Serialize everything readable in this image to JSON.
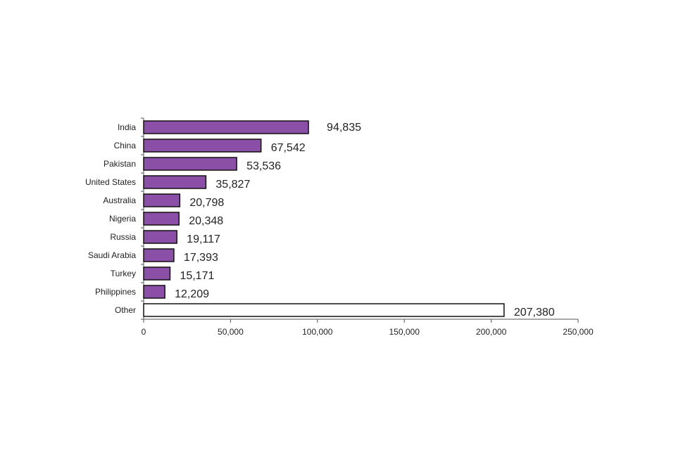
{
  "chart_data": {
    "type": "bar",
    "orientation": "horizontal",
    "categories": [
      "India",
      "China",
      "Pakistan",
      "United States",
      "Australia",
      "Nigeria",
      "Russia",
      "Saudi Arabia",
      "Turkey",
      "Philippines",
      "Other"
    ],
    "values": [
      94835,
      67542,
      53536,
      35827,
      20798,
      20348,
      19117,
      17393,
      15171,
      12209,
      207380
    ],
    "value_labels": [
      "94,835",
      "67,542",
      "53,536",
      "35,827",
      "20,798",
      "20,348",
      "19,117",
      "17,393",
      "15,171",
      "12,209",
      "207,380"
    ],
    "xlim": [
      0,
      250000
    ],
    "xticks": [
      0,
      50000,
      100000,
      150000,
      200000,
      250000
    ],
    "xtick_labels": [
      "0",
      "50,000",
      "100,000",
      "150,000",
      "200,000",
      "250,000"
    ],
    "grid": false,
    "legend": "none",
    "bar_colors": {
      "default": "#8c4fa8",
      "Other": "#ffffff"
    }
  }
}
